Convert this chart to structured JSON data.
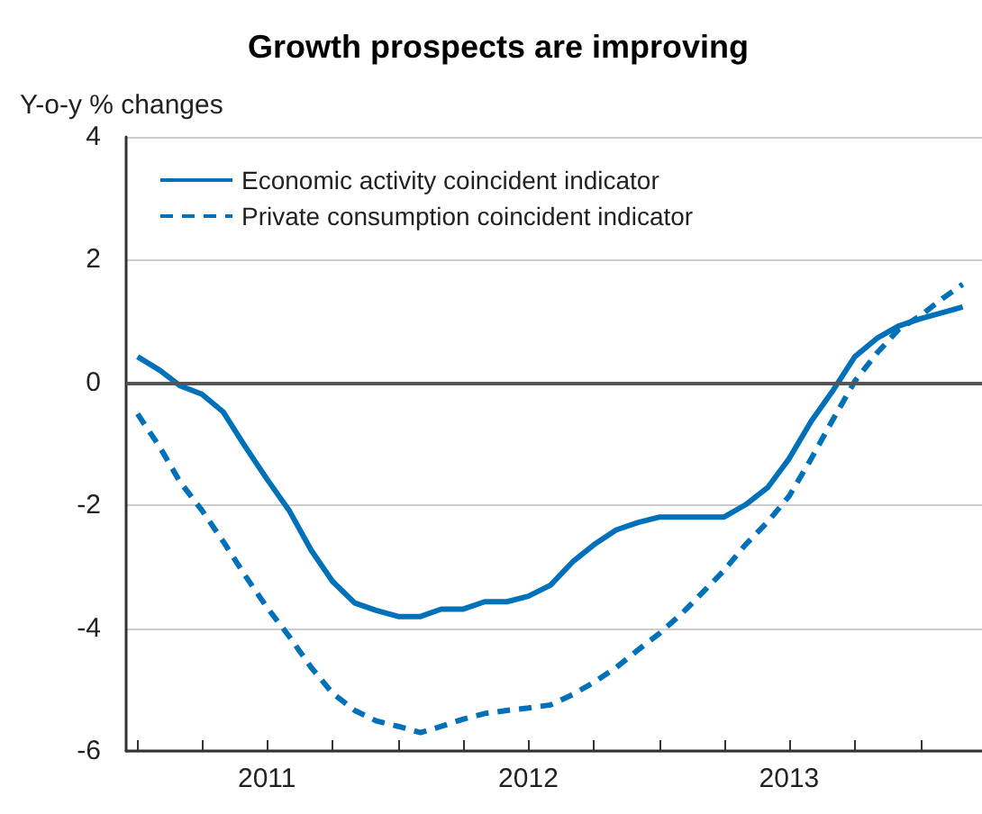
{
  "chart_data": {
    "type": "line",
    "title": "Growth prospects are improving",
    "ylabel": "Y-o-y % changes",
    "x": [
      "2011-01",
      "2011-02",
      "2011-03",
      "2011-04",
      "2011-05",
      "2011-06",
      "2011-07",
      "2011-08",
      "2011-09",
      "2011-10",
      "2011-11",
      "2011-12",
      "2012-01",
      "2012-02",
      "2012-03",
      "2012-04",
      "2012-05",
      "2012-06",
      "2012-07",
      "2012-08",
      "2012-09",
      "2012-10",
      "2012-11",
      "2012-12",
      "2013-01",
      "2013-02",
      "2013-03",
      "2013-04",
      "2013-05",
      "2013-06",
      "2013-07",
      "2013-08",
      "2013-09",
      "2013-10",
      "2013-11",
      "2013-12",
      "2014-01",
      "2014-02",
      "2014-03"
    ],
    "series": [
      {
        "name": "Economic activity coincident indicator",
        "color": "#0070b8",
        "line_style": "solid",
        "values": [
          0.42,
          0.2,
          -0.05,
          -0.19,
          -0.48,
          -1.05,
          -1.57,
          -2.08,
          -2.73,
          -3.24,
          -3.59,
          -3.71,
          -3.81,
          -3.81,
          -3.69,
          -3.69,
          -3.57,
          -3.57,
          -3.48,
          -3.3,
          -2.92,
          -2.64,
          -2.4,
          -2.28,
          -2.19,
          -2.19,
          -2.19,
          -2.19,
          -1.99,
          -1.71,
          -1.24,
          -0.63,
          -0.12,
          0.42,
          0.72,
          0.92,
          1.04,
          1.14,
          1.23
        ]
      },
      {
        "name": "Private consumption coincident indicator",
        "color": "#0070b8",
        "line_style": "dashed",
        "values": [
          -0.51,
          -1.05,
          -1.61,
          -2.08,
          -2.59,
          -3.15,
          -3.66,
          -4.13,
          -4.64,
          -5.06,
          -5.34,
          -5.51,
          -5.6,
          -5.7,
          -5.6,
          -5.48,
          -5.39,
          -5.34,
          -5.3,
          -5.25,
          -5.08,
          -4.88,
          -4.64,
          -4.36,
          -4.08,
          -3.76,
          -3.43,
          -3.06,
          -2.64,
          -2.27,
          -1.85,
          -1.24,
          -0.59,
          0.02,
          0.48,
          0.86,
          1.09,
          1.37,
          1.6
        ]
      }
    ],
    "xlim": [
      "2010-12-16",
      "2014-03-28"
    ],
    "xticks": [
      {
        "value": "2011-01",
        "label": null
      },
      {
        "value": "2011-04",
        "label": null
      },
      {
        "value": "2011-07",
        "label": "2011"
      },
      {
        "value": "2011-10",
        "label": null
      },
      {
        "value": "2012-01",
        "label": null
      },
      {
        "value": "2012-04",
        "label": null
      },
      {
        "value": "2012-07",
        "label": "2012"
      },
      {
        "value": "2012-10",
        "label": null
      },
      {
        "value": "2013-01",
        "label": null
      },
      {
        "value": "2013-04",
        "label": null
      },
      {
        "value": "2013-07",
        "label": "2013"
      },
      {
        "value": "2013-10",
        "label": null
      },
      {
        "value": "2014-01",
        "label": null
      }
    ],
    "ylim": [
      -6,
      4
    ],
    "yticks": [
      -6,
      -4,
      -2,
      0,
      2,
      4
    ],
    "grid": "y",
    "legend": "top left",
    "ref_lines": [
      {
        "axis": "y",
        "value": 0,
        "label": null,
        "color": "#555555"
      }
    ]
  }
}
